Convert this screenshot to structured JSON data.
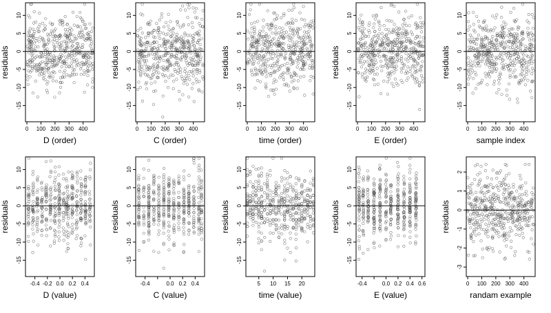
{
  "chart_data": [
    {
      "type": "scatter",
      "panel": "d-order",
      "xlabel": "D (order)",
      "ylabel": "residuals",
      "xlim": [
        -10,
        480
      ],
      "ylim": [
        -19.5,
        13.5
      ],
      "xticks": [
        0,
        100,
        200,
        300,
        400
      ],
      "yticks": [
        -15,
        -10,
        -5,
        0,
        5,
        10
      ],
      "hline": 0,
      "points": {
        "n": 470,
        "x_range": [
          0,
          470
        ],
        "pattern": "uniform-index",
        "y_spread": 5,
        "seed": 11
      }
    },
    {
      "type": "scatter",
      "panel": "c-order",
      "xlabel": "C (order)",
      "ylabel": "residuals",
      "xlim": [
        -10,
        480
      ],
      "ylim": [
        -19.5,
        13.5
      ],
      "xticks": [
        0,
        100,
        200,
        300,
        400
      ],
      "yticks": [
        -15,
        -10,
        -5,
        0,
        5,
        10
      ],
      "hline": 0,
      "points": {
        "n": 470,
        "x_range": [
          0,
          470
        ],
        "pattern": "uniform-index",
        "y_spread": 5,
        "seed": 23
      }
    },
    {
      "type": "scatter",
      "panel": "time-order",
      "xlabel": "time (order)",
      "ylabel": "residuals",
      "xlim": [
        -10,
        480
      ],
      "ylim": [
        -19.5,
        13.5
      ],
      "xticks": [
        0,
        100,
        200,
        300,
        400
      ],
      "yticks": [
        -15,
        -10,
        -5,
        0,
        5,
        10
      ],
      "hline": 0,
      "points": {
        "n": 470,
        "x_range": [
          0,
          470
        ],
        "pattern": "uniform-index",
        "y_spread": 5,
        "seed": 37
      }
    },
    {
      "type": "scatter",
      "panel": "e-order",
      "xlabel": "E (order)",
      "ylabel": "residuals",
      "xlim": [
        -10,
        480
      ],
      "ylim": [
        -19.5,
        13.5
      ],
      "xticks": [
        0,
        100,
        200,
        300,
        400
      ],
      "yticks": [
        -15,
        -10,
        -5,
        0,
        5,
        10
      ],
      "hline": 0,
      "points": {
        "n": 470,
        "x_range": [
          0,
          470
        ],
        "pattern": "uniform-index",
        "y_spread": 5,
        "seed": 41
      }
    },
    {
      "type": "scatter",
      "panel": "sample-index",
      "xlabel": "sample index",
      "ylabel": "residuals",
      "xlim": [
        -10,
        480
      ],
      "ylim": [
        -19.5,
        13.5
      ],
      "xticks": [
        0,
        100,
        200,
        300,
        400
      ],
      "yticks": [
        -15,
        -10,
        -5,
        0,
        5,
        10
      ],
      "hline": 0,
      "points": {
        "n": 470,
        "x_range": [
          0,
          470
        ],
        "pattern": "uniform-index",
        "y_spread": 5,
        "seed": 53
      }
    },
    {
      "type": "scatter",
      "panel": "d-value",
      "xlabel": "D (value)",
      "ylabel": "residuals",
      "xlim": [
        -0.55,
        0.55
      ],
      "ylim": [
        -19.5,
        13.5
      ],
      "xticks": [
        -0.4,
        -0.2,
        0.0,
        0.2,
        0.4
      ],
      "xtick_labels": [
        "-0.4",
        "-0.2",
        "0.0",
        "0.2",
        "0.4"
      ],
      "yticks": [
        -15,
        -10,
        -5,
        0,
        5,
        10
      ],
      "hline": 0,
      "points": {
        "n": 470,
        "x_levels": [
          -0.5,
          -0.43,
          -0.36,
          -0.29,
          -0.22,
          -0.15,
          -0.08,
          -0.01,
          0.06,
          0.1,
          0.13,
          0.2,
          0.27,
          0.34,
          0.41,
          0.48
        ],
        "x_jitter": 0.01,
        "y_spread": 5,
        "seed": 61
      }
    },
    {
      "type": "scatter",
      "panel": "c-value",
      "xlabel": "C (value)",
      "ylabel": "residuals",
      "xlim": [
        -0.55,
        0.55
      ],
      "ylim": [
        -19.5,
        13.5
      ],
      "xticks": [
        -0.4,
        -0.2,
        0.0,
        0.2,
        0.4
      ],
      "xtick_labels": [
        "-0.4",
        "",
        "0.0",
        "0.2",
        "0.4"
      ],
      "yticks": [
        -15,
        -10,
        -5,
        0,
        5,
        10
      ],
      "hline": 0,
      "points": {
        "n": 470,
        "x_levels": [
          -0.5,
          -0.42,
          -0.34,
          -0.26,
          -0.18,
          -0.1,
          -0.02,
          0.06,
          0.14,
          0.22,
          0.3,
          0.38,
          0.46,
          0.5
        ],
        "x_jitter": 0.004,
        "y_spread": 5,
        "seed": 73
      }
    },
    {
      "type": "scatter",
      "panel": "time-value",
      "xlabel": "time (value)",
      "ylabel": "residuals",
      "xlim": [
        0.5,
        24.5
      ],
      "ylim": [
        -19.5,
        13.5
      ],
      "xticks": [
        5,
        10,
        15,
        20
      ],
      "yticks": [
        -15,
        -10,
        -5,
        0,
        5,
        10
      ],
      "hline": 0,
      "points": {
        "n": 470,
        "x_levels": [
          1,
          2,
          3,
          4,
          5,
          6,
          7,
          8,
          9,
          10,
          11,
          12,
          13,
          14,
          15,
          16,
          17,
          18,
          19,
          20,
          21,
          22,
          23,
          24
        ],
        "x_jitter": 0.05,
        "y_spread": 5,
        "seed": 89
      }
    },
    {
      "type": "scatter",
      "panel": "e-value",
      "xlabel": "E (value)",
      "ylabel": "residuals",
      "xlim": [
        -0.5,
        0.65
      ],
      "ylim": [
        -19.5,
        13.5
      ],
      "xticks": [
        -0.4,
        -0.2,
        0.0,
        0.2,
        0.4,
        0.6
      ],
      "xtick_labels": [
        "-0.4",
        "",
        "0.0",
        "0.2",
        "0.4",
        "0.6"
      ],
      "yticks": [
        -15,
        -10,
        -5,
        0,
        5,
        10
      ],
      "hline": 0,
      "points": {
        "n": 470,
        "x_levels": [
          -0.45,
          -0.38,
          -0.3,
          -0.2,
          -0.1,
          0.0,
          0.08,
          0.2,
          0.3,
          0.4,
          0.5
        ],
        "x_jitter": 0.008,
        "y_spread": 5,
        "seed": 97
      }
    },
    {
      "type": "scatter",
      "panel": "random-example",
      "xlabel": "randam example",
      "ylabel": "residuals",
      "xlim": [
        -10,
        480
      ],
      "ylim": [
        -3.5,
        2.8
      ],
      "xticks": [
        0,
        100,
        200,
        300,
        400
      ],
      "yticks": [
        -3,
        -2,
        -1,
        0,
        1,
        2
      ],
      "hline": 0,
      "points": {
        "n": 470,
        "x_range": [
          0,
          470
        ],
        "pattern": "uniform-index",
        "y_spread": 1,
        "seed": 101
      }
    }
  ],
  "colors": {
    "points": "#555555",
    "frame": "#000000",
    "hline": "#000000"
  }
}
